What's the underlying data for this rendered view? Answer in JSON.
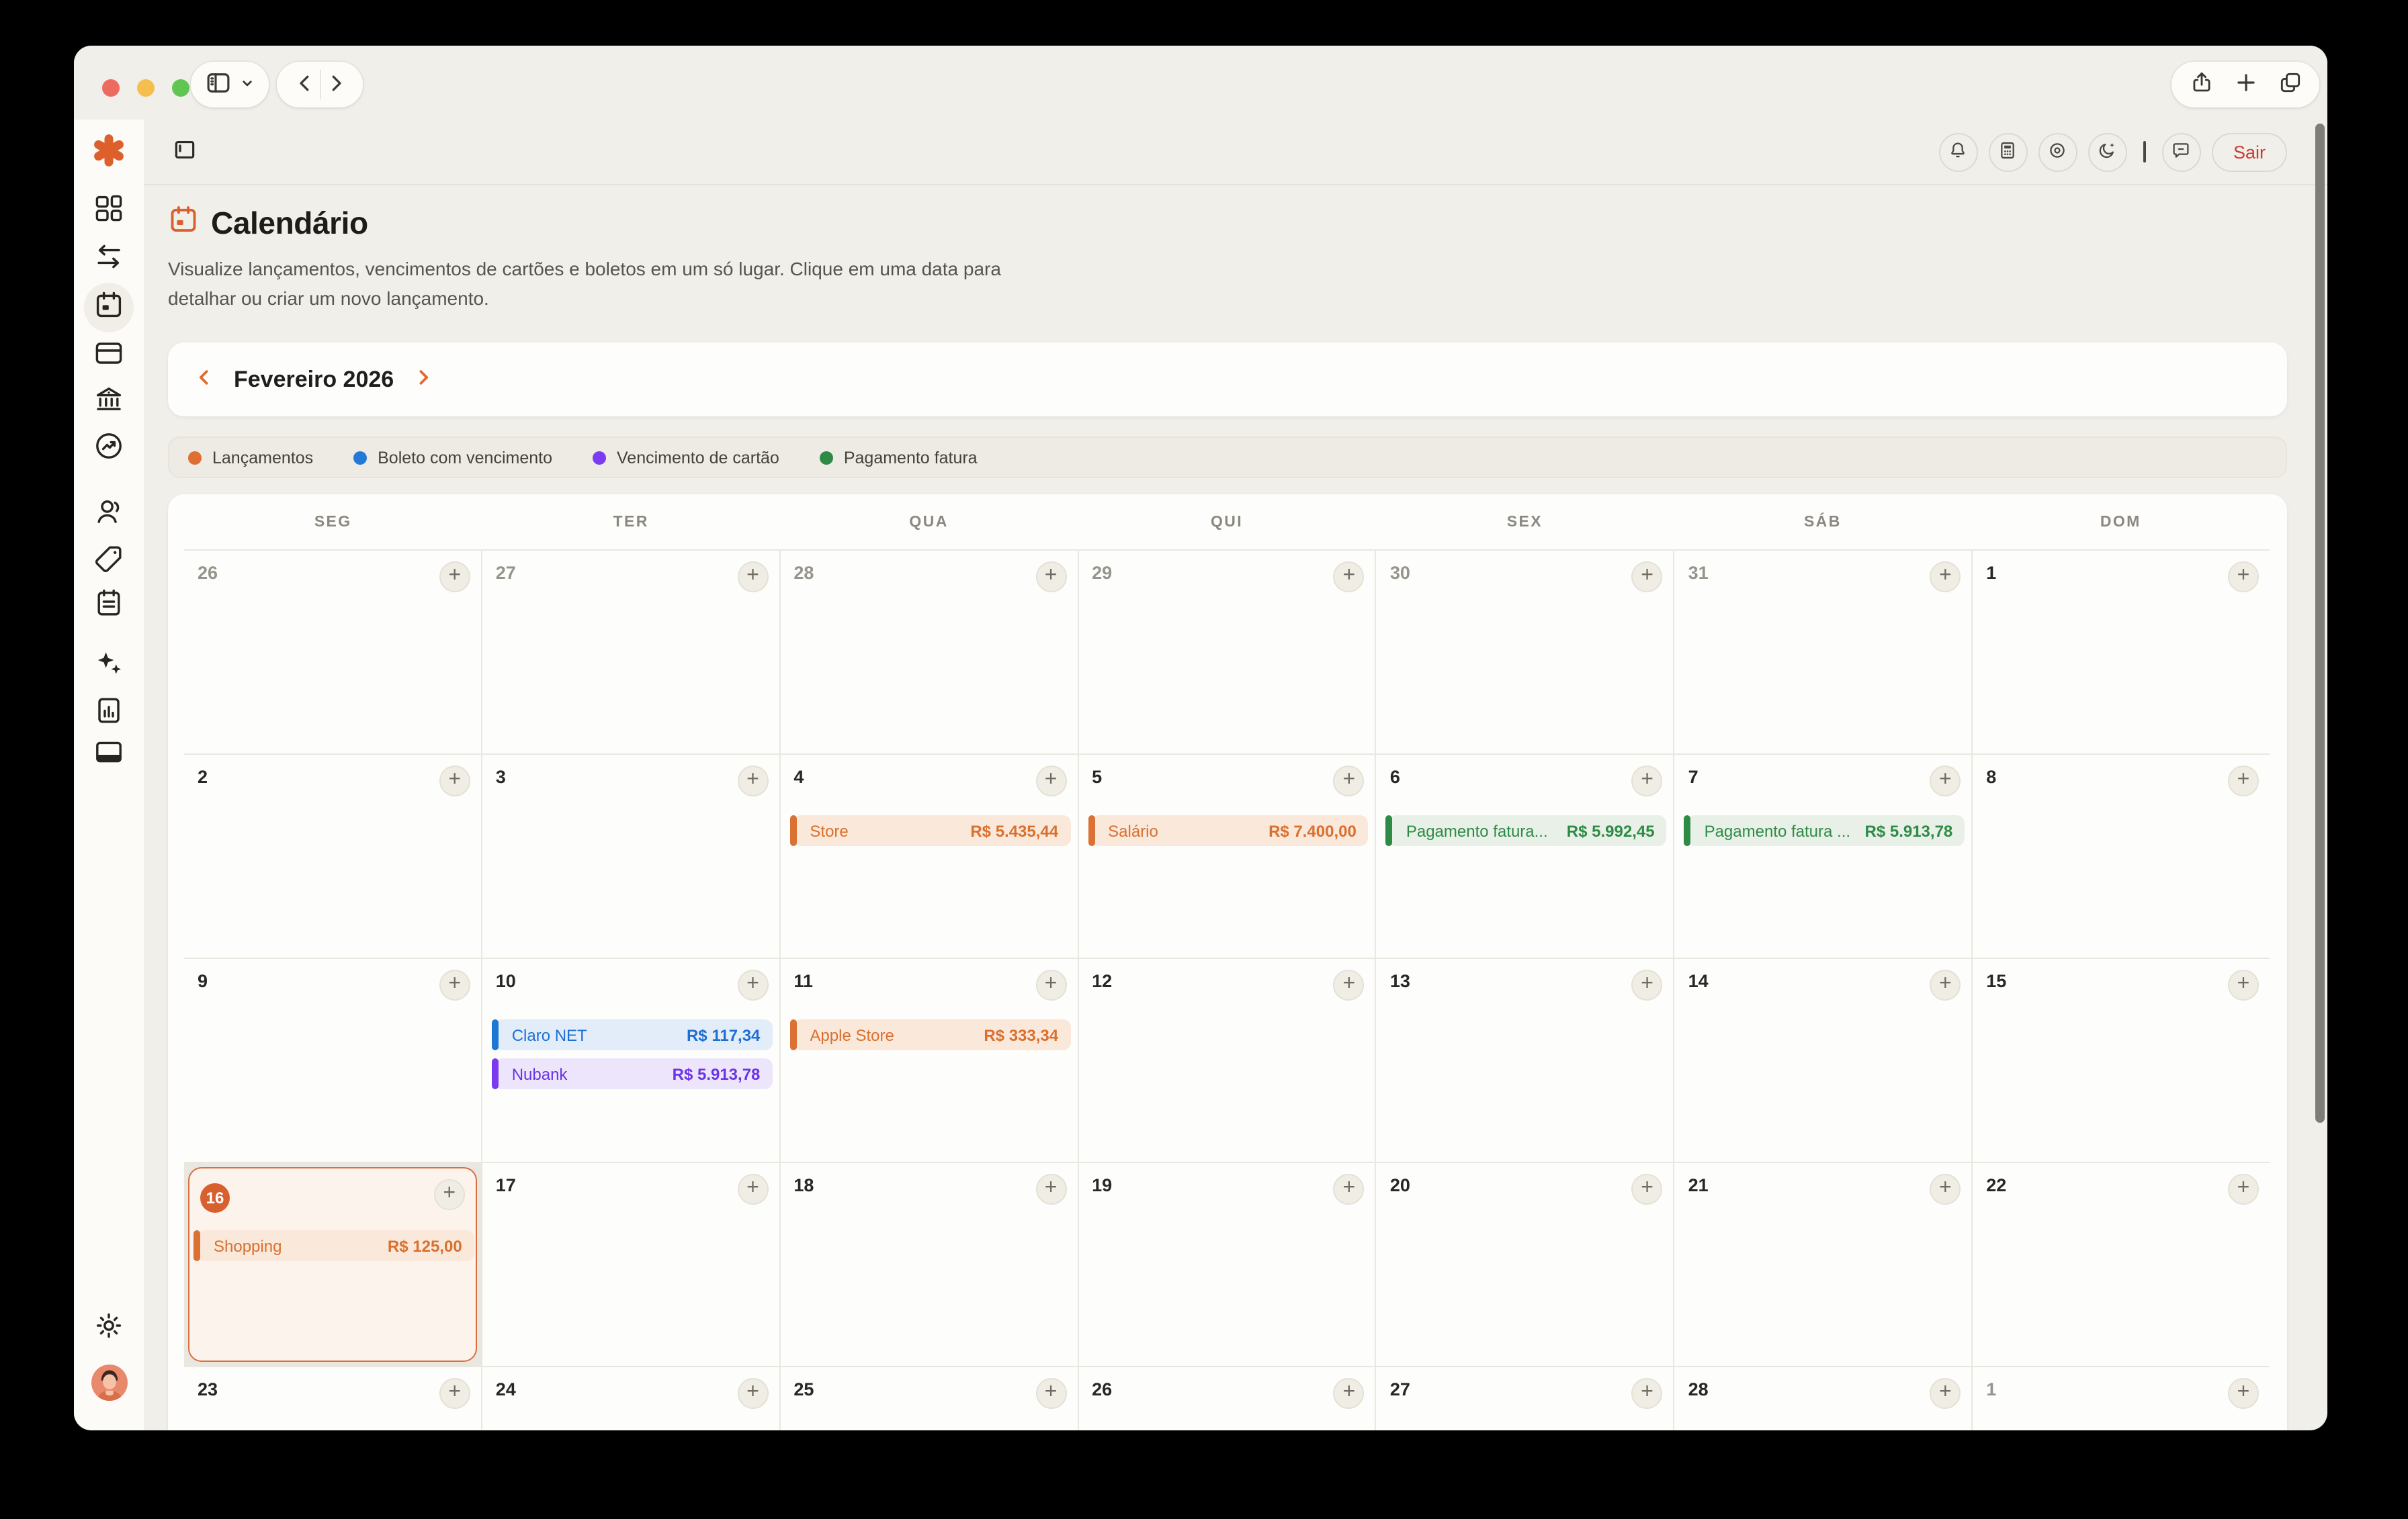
{
  "window": {
    "traffic_lights": [
      "close",
      "minimize",
      "zoom"
    ],
    "toolbar_icons": [
      "sidebar-panel",
      "chevron-down",
      "back",
      "forward",
      "share",
      "new-tab",
      "tabs"
    ]
  },
  "sidebar": {
    "items": [
      {
        "icon": "app-logo",
        "active": false
      },
      {
        "icon": "dashboard",
        "active": false
      },
      {
        "icon": "transfers",
        "active": false
      },
      {
        "icon": "calendar",
        "active": true
      },
      {
        "icon": "card",
        "active": false
      },
      {
        "icon": "bank",
        "active": false
      },
      {
        "icon": "performance",
        "active": false
      },
      {
        "icon": "users",
        "active": false
      },
      {
        "icon": "tag",
        "active": false
      },
      {
        "icon": "notes",
        "active": false
      },
      {
        "icon": "ai-sparkles",
        "active": false
      },
      {
        "icon": "report",
        "active": false
      },
      {
        "icon": "card-statement",
        "active": false
      }
    ],
    "footer_items": [
      {
        "icon": "settings"
      },
      {
        "icon": "avatar"
      }
    ]
  },
  "header": {
    "buttons": [
      "notifications-bell",
      "calculator",
      "privacy-eye",
      "dark-mode-moon",
      "feedback-chat"
    ],
    "logout": "Sair"
  },
  "page": {
    "title": "Calendário",
    "description": "Visualize lançamentos, vencimentos de cartões e boletos em um só lugar. Clique em uma data para detalhar ou criar um novo lançamento."
  },
  "month_nav": {
    "label": "Fevereiro 2026"
  },
  "legend": {
    "items": [
      {
        "label": "Lançamentos",
        "color": "#df6e33",
        "type": "lancamento"
      },
      {
        "label": "Boleto com vencimento",
        "color": "#2478d8",
        "type": "boleto"
      },
      {
        "label": "Vencimento de cartão",
        "color": "#7c3bf0",
        "type": "cartao"
      },
      {
        "label": "Pagamento fatura",
        "color": "#2d8b45",
        "type": "fatura"
      }
    ]
  },
  "event_colors": {
    "lancamento": {
      "bg": "#fae8da",
      "bar": "#dc7134",
      "text": "#d9702e"
    },
    "boleto": {
      "bg": "#e3edfa",
      "bar": "#1e78d2",
      "text": "#1d6fd2"
    },
    "cartao": {
      "bg": "#ece5fb",
      "bar": "#7a3bee",
      "text": "#6c34e4"
    },
    "fatura": {
      "bg": "#e9f0e8",
      "bar": "#2e8b46",
      "text": "#2e8b46"
    }
  },
  "today_colors": {
    "border": "#d8703f",
    "bg": "#fcf3ec",
    "badge_bg": "#d8602f",
    "badge_text": "#ffffff"
  },
  "calendar": {
    "weekdays": [
      "SEG",
      "TER",
      "QUA",
      "QUI",
      "SEX",
      "SÁB",
      "DOM"
    ],
    "weeks": [
      [
        {
          "day": "26",
          "muted": true
        },
        {
          "day": "27",
          "muted": true
        },
        {
          "day": "28",
          "muted": true
        },
        {
          "day": "29",
          "muted": true
        },
        {
          "day": "30",
          "muted": true
        },
        {
          "day": "31",
          "muted": true
        },
        {
          "day": "1"
        }
      ],
      [
        {
          "day": "2"
        },
        {
          "day": "3"
        },
        {
          "day": "4",
          "events": [
            {
              "label": "Store",
              "amount": "R$ 5.435,44",
              "type": "lancamento"
            }
          ]
        },
        {
          "day": "5",
          "events": [
            {
              "label": "Salário",
              "amount": "R$ 7.400,00",
              "type": "lancamento"
            }
          ]
        },
        {
          "day": "6",
          "events": [
            {
              "label": "Pagamento fatura...",
              "amount": "R$ 5.992,45",
              "type": "fatura"
            }
          ]
        },
        {
          "day": "7",
          "events": [
            {
              "label": "Pagamento fatura ...",
              "amount": "R$ 5.913,78",
              "type": "fatura"
            }
          ]
        },
        {
          "day": "8"
        }
      ],
      [
        {
          "day": "9"
        },
        {
          "day": "10",
          "events": [
            {
              "label": "Claro NET",
              "amount": "R$ 117,34",
              "type": "boleto"
            },
            {
              "label": "Nubank",
              "amount": "R$ 5.913,78",
              "type": "cartao"
            }
          ]
        },
        {
          "day": "11",
          "events": [
            {
              "label": "Apple Store",
              "amount": "R$ 333,34",
              "type": "lancamento"
            }
          ]
        },
        {
          "day": "12"
        },
        {
          "day": "13"
        },
        {
          "day": "14"
        },
        {
          "day": "15"
        }
      ],
      [
        {
          "day": "16",
          "today": true,
          "events": [
            {
              "label": "Shopping",
              "amount": "R$ 125,00",
              "type": "lancamento"
            }
          ]
        },
        {
          "day": "17"
        },
        {
          "day": "18"
        },
        {
          "day": "19"
        },
        {
          "day": "20"
        },
        {
          "day": "21"
        },
        {
          "day": "22"
        }
      ],
      [
        {
          "day": "23"
        },
        {
          "day": "24"
        },
        {
          "day": "25"
        },
        {
          "day": "26"
        },
        {
          "day": "27"
        },
        {
          "day": "28"
        },
        {
          "day": "1",
          "muted": true
        }
      ]
    ]
  }
}
